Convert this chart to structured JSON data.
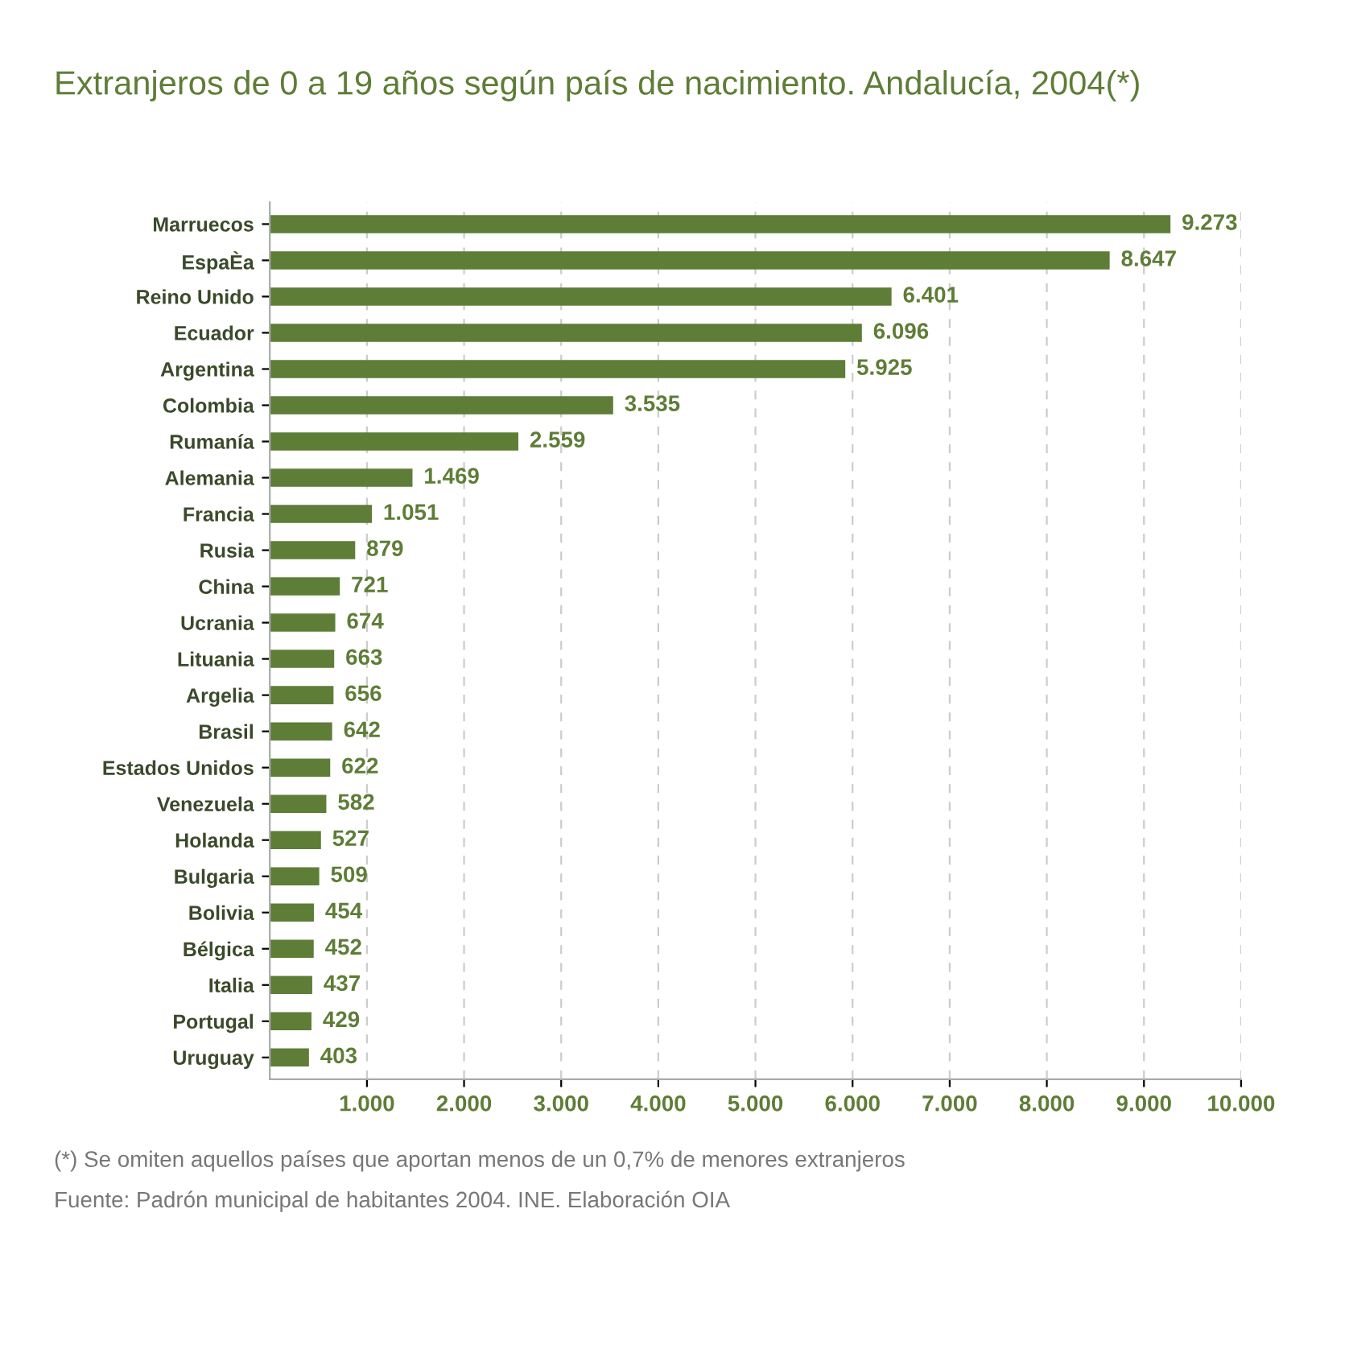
{
  "chart_data": {
    "type": "bar",
    "orientation": "horizontal",
    "title": "Extranjeros de 0 a 19 años según país de nacimiento. Andalucía, 2004(*)",
    "categories": [
      "Marruecos",
      "EspaÈa",
      "Reino Unido",
      "Ecuador",
      "Argentina",
      "Colombia",
      "Rumanía",
      "Alemania",
      "Francia",
      "Rusia",
      "China",
      "Ucrania",
      "Lituania",
      "Argelia",
      "Brasil",
      "Estados Unidos",
      "Venezuela",
      "Holanda",
      "Bulgaria",
      "Bolivia",
      "Bélgica",
      "Italia",
      "Portugal",
      "Uruguay"
    ],
    "values": [
      9273,
      8647,
      6401,
      6096,
      5925,
      3535,
      2559,
      1469,
      1051,
      879,
      721,
      674,
      663,
      656,
      642,
      622,
      582,
      527,
      509,
      454,
      452,
      437,
      429,
      403
    ],
    "value_labels": [
      "9.273",
      "8.647",
      "6.401",
      "6.096",
      "5.925",
      "3.535",
      "2.559",
      "1.469",
      "1.051",
      "879",
      "721",
      "674",
      "663",
      "656",
      "642",
      "622",
      "582",
      "527",
      "509",
      "454",
      "452",
      "437",
      "429",
      "403"
    ],
    "color": "#5e7d36",
    "xlim": [
      0,
      10000
    ],
    "xticks": [
      {
        "value": 1000,
        "label": "1.000"
      },
      {
        "value": 2000,
        "label": "2.000"
      },
      {
        "value": 3000,
        "label": "3.000"
      },
      {
        "value": 4000,
        "label": "4.000"
      },
      {
        "value": 5000,
        "label": "5.000"
      },
      {
        "value": 6000,
        "label": "6.000"
      },
      {
        "value": 7000,
        "label": "7.000"
      },
      {
        "value": 8000,
        "label": "8.000"
      },
      {
        "value": 9000,
        "label": "9.000"
      },
      {
        "value": 10000,
        "label": "10.000"
      }
    ],
    "grid": "x",
    "annotations": [
      "(*) Se omiten aquellos países que aportan menos de un 0,7% de menores extranjeros",
      "Fuente: Padrón municipal de habitantes 2004. INE. Elaboración OIA"
    ]
  }
}
